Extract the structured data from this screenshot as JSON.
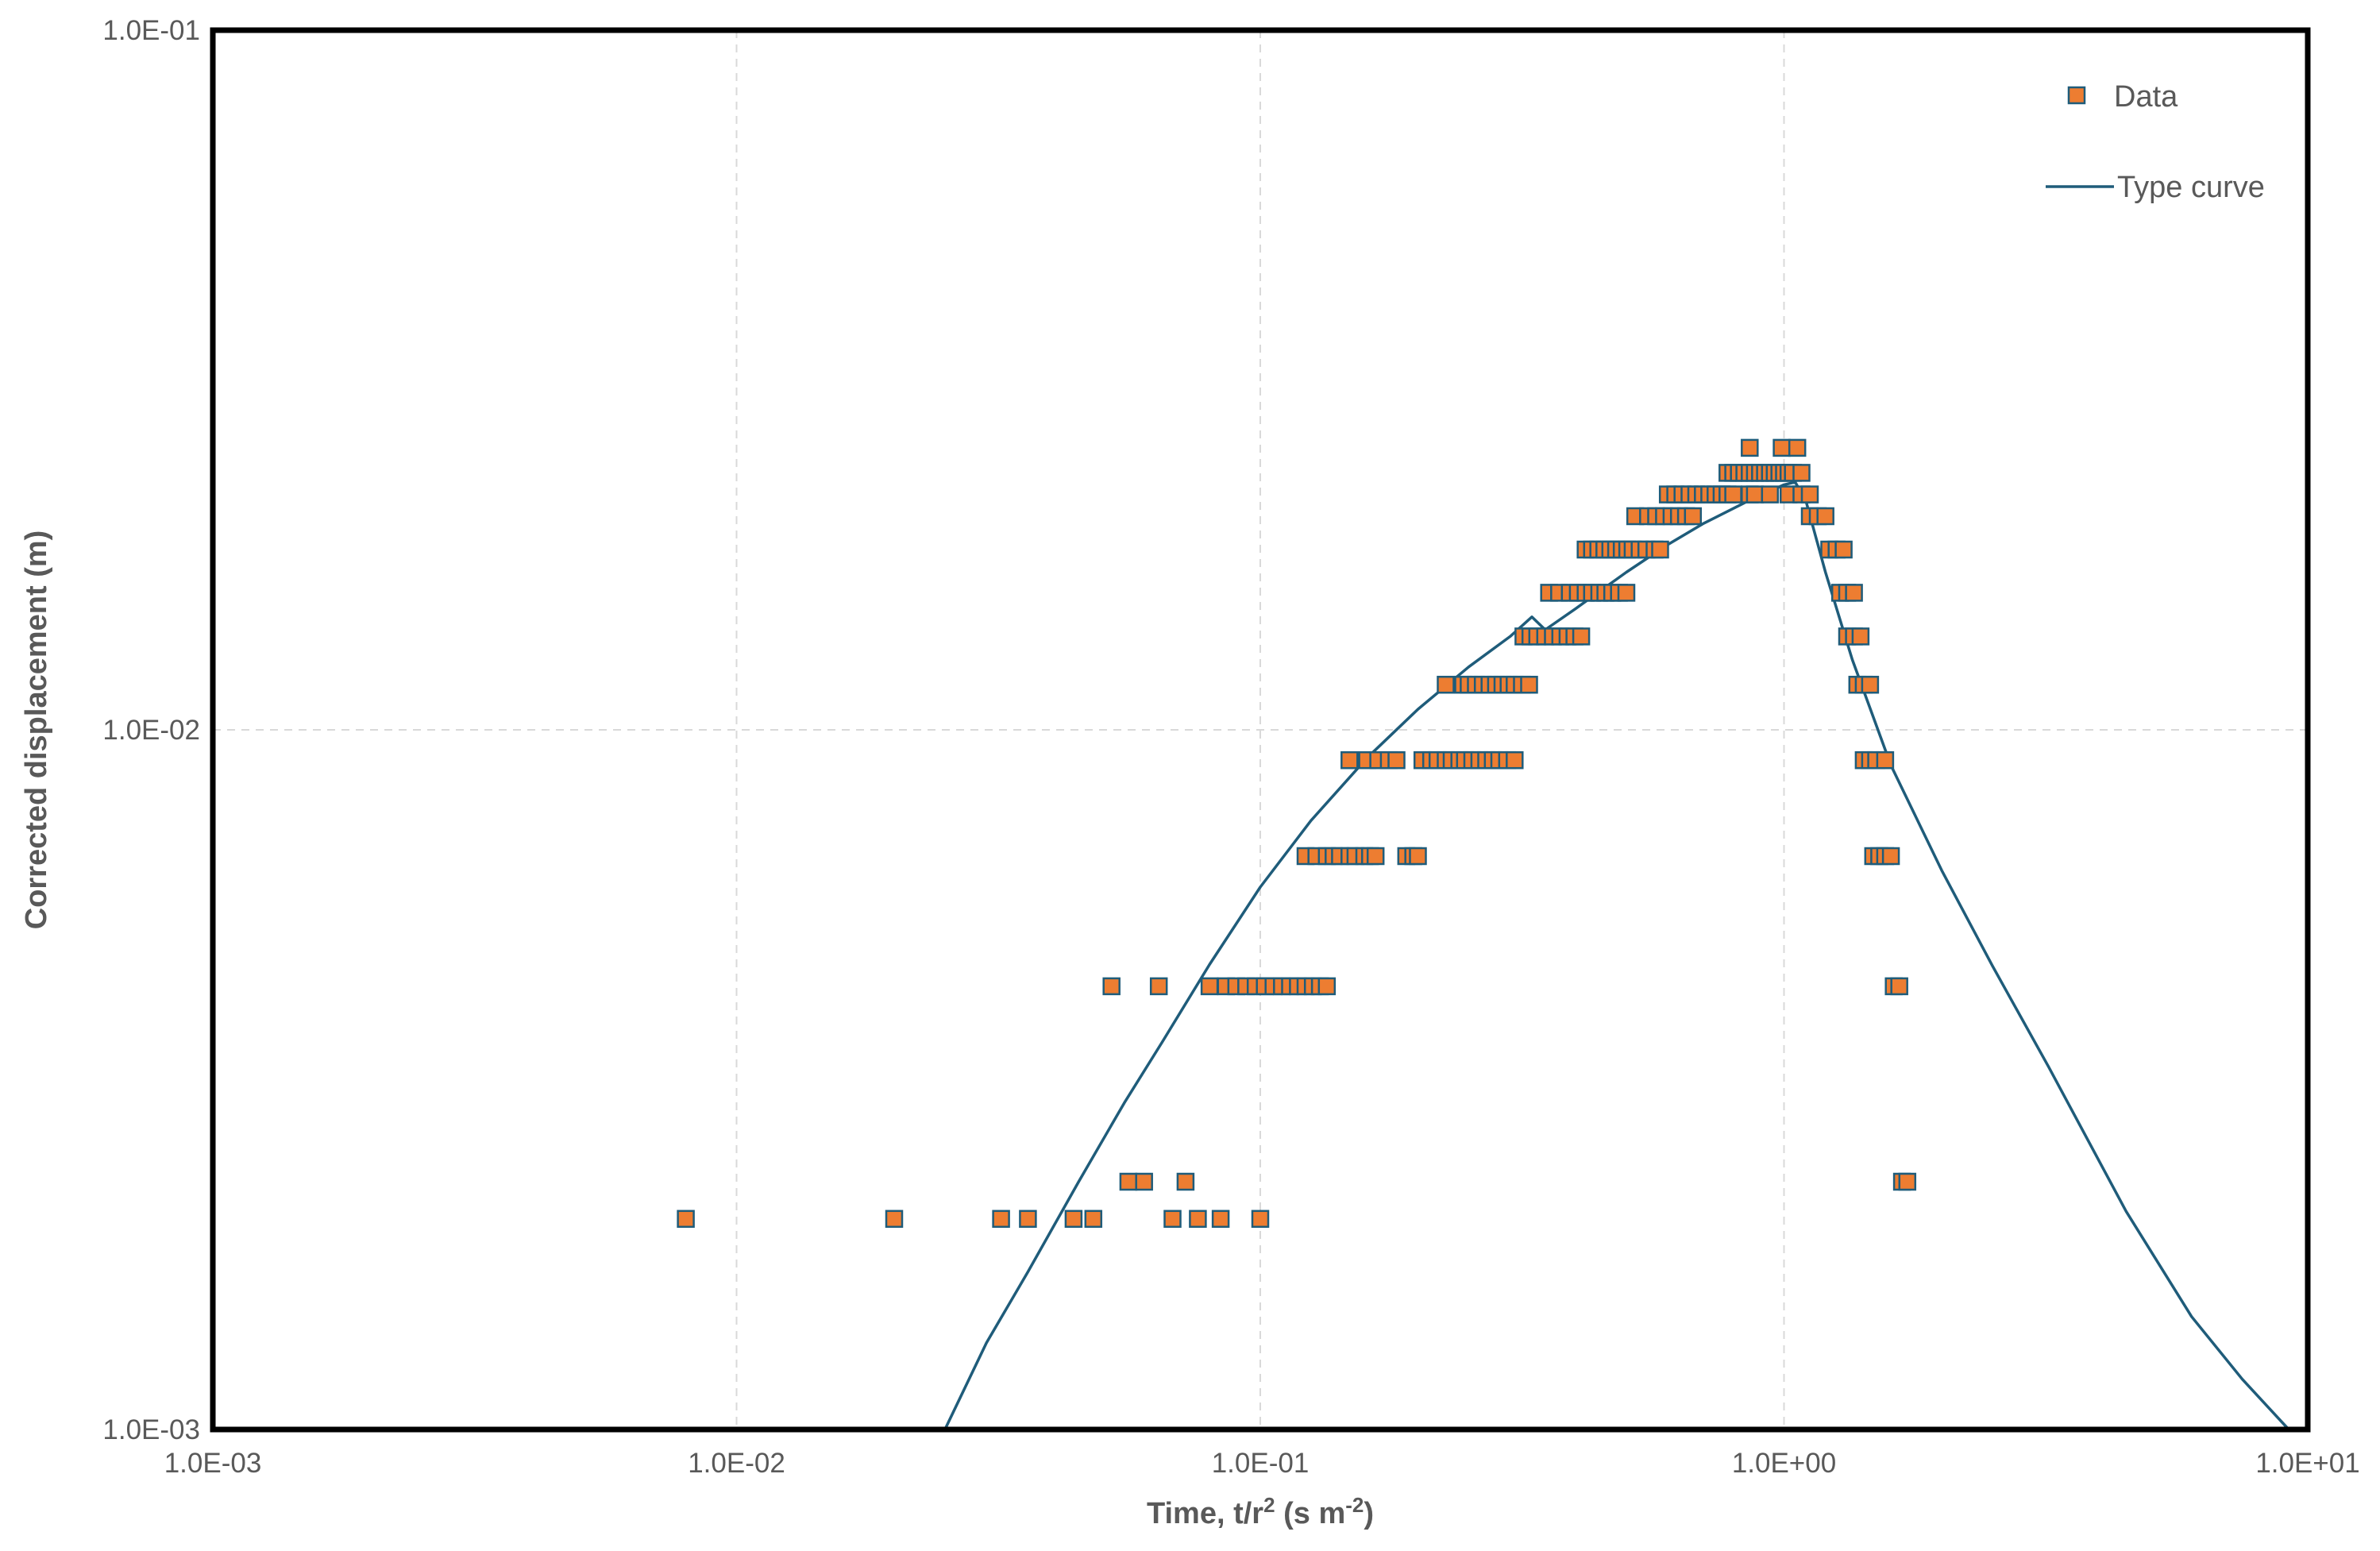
{
  "chart_data": {
    "type": "scatter",
    "xscale": "log",
    "yscale": "log",
    "xlim": [
      0.001,
      10
    ],
    "ylim": [
      0.001,
      0.1
    ],
    "grid": true,
    "legend_position": "top-right",
    "xlabel": {
      "prefix": "Time, t/r",
      "sup1": "2",
      "mid": " (s m",
      "sup2": "-2",
      "suffix": ")"
    },
    "ylabel": "Corrected displacement (m)",
    "x_ticks": [
      "1.0E-03",
      "1.0E-02",
      "1.0E-01",
      "1.0E+00",
      "1.0E+01"
    ],
    "y_ticks": [
      "1.0E-03",
      "1.0E-02",
      "1.0E-01"
    ],
    "colors": {
      "data_fill": "#ED7D31",
      "data_edge": "#1F5C7A",
      "curve": "#1F5C7A",
      "frame": "#000000",
      "grid": "#D9D9D9"
    },
    "series": [
      {
        "name": "Data",
        "kind": "markers",
        "x": [
          0.008,
          0.02,
          0.032,
          0.036,
          0.044,
          0.048,
          0.068,
          0.076,
          0.084,
          0.1,
          0.056,
          0.06,
          0.072,
          1.68,
          1.72,
          0.052,
          0.064,
          0.08,
          0.086,
          0.09,
          0.094,
          0.098,
          0.102,
          0.106,
          0.11,
          0.114,
          0.118,
          0.122,
          0.126,
          0.13,
          0.134,
          1.62,
          1.66,
          0.122,
          0.128,
          0.134,
          0.138,
          0.142,
          0.148,
          0.152,
          0.158,
          0.162,
          0.166,
          0.19,
          0.196,
          0.2,
          1.48,
          1.52,
          1.56,
          1.6,
          0.148,
          0.16,
          0.168,
          0.176,
          0.182,
          0.204,
          0.212,
          0.218,
          0.226,
          0.232,
          0.24,
          0.246,
          0.254,
          0.262,
          0.27,
          0.278,
          0.286,
          0.296,
          0.306,
          1.42,
          1.46,
          1.5,
          1.56,
          0.226,
          0.244,
          0.25,
          0.258,
          0.266,
          0.274,
          0.282,
          0.29,
          0.298,
          0.306,
          0.316,
          0.326,
          1.38,
          1.42,
          1.46,
          0.318,
          0.328,
          0.338,
          0.35,
          0.362,
          0.374,
          0.386,
          0.398,
          0.41,
          1.32,
          1.36,
          1.4,
          0.356,
          0.372,
          0.39,
          0.404,
          0.418,
          0.43,
          0.444,
          0.456,
          0.47,
          0.484,
          0.5,
          1.28,
          1.32,
          1.36,
          0.418,
          0.43,
          0.442,
          0.454,
          0.466,
          0.478,
          0.49,
          0.502,
          0.514,
          0.53,
          0.546,
          0.566,
          0.58,
          1.22,
          1.26,
          1.3,
          0.52,
          0.55,
          0.57,
          0.59,
          0.61,
          0.63,
          0.65,
          0.67,
          1.12,
          1.16,
          1.2,
          0.6,
          0.62,
          0.64,
          0.66,
          0.68,
          0.7,
          0.72,
          0.74,
          0.76,
          0.78,
          0.8,
          0.86,
          0.88,
          0.94,
          1.02,
          1.08,
          1.12,
          0.78,
          0.8,
          0.82,
          0.84,
          0.86,
          0.88,
          0.9,
          0.92,
          0.94,
          0.96,
          0.98,
          1.0,
          1.02,
          1.04,
          1.08,
          0.86,
          0.99,
          1.06
        ],
        "y": [
          0.002,
          0.002,
          0.002,
          0.002,
          0.002,
          0.002,
          0.002,
          0.002,
          0.002,
          0.002,
          0.00226,
          0.00226,
          0.00226,
          0.00226,
          0.00226,
          0.0043,
          0.0043,
          0.0043,
          0.0043,
          0.0043,
          0.0043,
          0.0043,
          0.0043,
          0.0043,
          0.0043,
          0.0043,
          0.0043,
          0.0043,
          0.0043,
          0.0043,
          0.0043,
          0.0043,
          0.0043,
          0.0066,
          0.0066,
          0.0066,
          0.0066,
          0.0066,
          0.0066,
          0.0066,
          0.0066,
          0.0066,
          0.0066,
          0.0066,
          0.0066,
          0.0066,
          0.0066,
          0.0066,
          0.0066,
          0.0066,
          0.00905,
          0.00905,
          0.00905,
          0.00905,
          0.00905,
          0.00905,
          0.00905,
          0.00905,
          0.00905,
          0.00905,
          0.00905,
          0.00905,
          0.00905,
          0.00905,
          0.00905,
          0.00905,
          0.00905,
          0.00905,
          0.00905,
          0.00905,
          0.00905,
          0.00905,
          0.00905,
          0.0116,
          0.0116,
          0.0116,
          0.0116,
          0.0116,
          0.0116,
          0.0116,
          0.0116,
          0.0116,
          0.0116,
          0.0116,
          0.0116,
          0.0116,
          0.0116,
          0.0116,
          0.0136,
          0.0136,
          0.0136,
          0.0136,
          0.0136,
          0.0136,
          0.0136,
          0.0136,
          0.0136,
          0.0136,
          0.0136,
          0.0136,
          0.0157,
          0.0157,
          0.0157,
          0.0157,
          0.0157,
          0.0157,
          0.0157,
          0.0157,
          0.0157,
          0.0157,
          0.0157,
          0.0157,
          0.0157,
          0.0157,
          0.0181,
          0.0181,
          0.0181,
          0.0181,
          0.0181,
          0.0181,
          0.0181,
          0.0181,
          0.0181,
          0.0181,
          0.0181,
          0.0181,
          0.0181,
          0.0181,
          0.0181,
          0.0181,
          0.0202,
          0.0202,
          0.0202,
          0.0202,
          0.0202,
          0.0202,
          0.0202,
          0.0202,
          0.0202,
          0.0202,
          0.0202,
          0.0217,
          0.0217,
          0.0217,
          0.0217,
          0.0217,
          0.0217,
          0.0217,
          0.0217,
          0.0217,
          0.0217,
          0.0217,
          0.0217,
          0.0217,
          0.0217,
          0.0217,
          0.0217,
          0.0217,
          0.0233,
          0.0233,
          0.0233,
          0.0233,
          0.0233,
          0.0233,
          0.0233,
          0.0233,
          0.0233,
          0.0233,
          0.0233,
          0.0233,
          0.0233,
          0.0233,
          0.0233,
          0.0253,
          0.0253,
          0.0253
        ]
      },
      {
        "name": "Type curve",
        "kind": "line",
        "x": [
          0.025,
          0.03,
          0.036,
          0.045,
          0.055,
          0.065,
          0.08,
          0.1,
          0.125,
          0.16,
          0.2,
          0.25,
          0.3,
          0.33,
          0.35,
          0.4,
          0.5,
          0.6,
          0.7,
          0.85,
          1.0,
          1.05,
          1.1,
          1.2,
          1.35,
          1.6,
          2.0,
          2.5,
          3.2,
          4.5,
          6.0,
          7.5,
          9.2
        ],
        "y": [
          0.001,
          0.00133,
          0.00168,
          0.00226,
          0.00293,
          0.00358,
          0.00462,
          0.00596,
          0.00742,
          0.00912,
          0.0107,
          0.0123,
          0.0136,
          0.0145,
          0.0139,
          0.0149,
          0.0168,
          0.0184,
          0.0197,
          0.0212,
          0.0224,
          0.0226,
          0.0213,
          0.0168,
          0.0126,
          0.0089,
          0.0063,
          0.0046,
          0.0033,
          0.00205,
          0.00145,
          0.00118,
          0.001
        ]
      }
    ]
  }
}
